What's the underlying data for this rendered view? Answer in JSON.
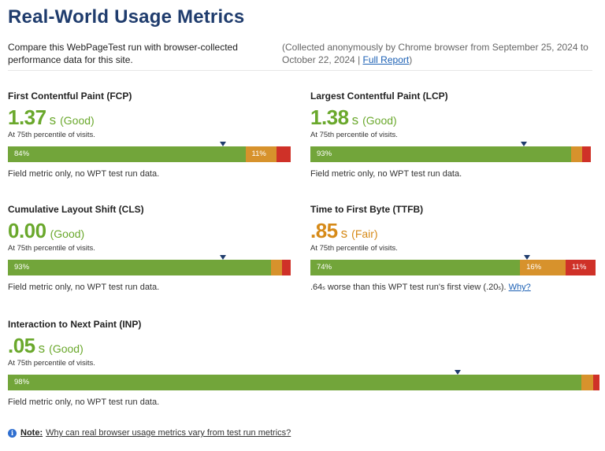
{
  "page": {
    "title": "Real-World Usage Metrics",
    "intro_left": "Compare this WebPageTest run with browser-collected performance data for this site.",
    "intro_right_text": "(Collected anonymously by Chrome browser from September 25, 2024 to October 22, 2024 | ",
    "intro_right_link": "Full Report",
    "intro_right_close": ")"
  },
  "colors": {
    "good": "#72a53a",
    "needs_improvement": "#d7922c",
    "poor": "#cf3128",
    "title": "#1f3c6d"
  },
  "metrics": {
    "fcp": {
      "title": "First Contentful Paint (FCP)",
      "value": "1.37",
      "unit": "s",
      "rating": "(Good)",
      "percentile": "At 75th percentile of visits.",
      "bar_labels": [
        "84%",
        "11%",
        ""
      ],
      "bar_fractions": [
        0.84,
        0.11,
        0.05
      ],
      "marker_fraction": 0.76,
      "note": "Field metric only, no WPT test run data."
    },
    "lcp": {
      "title": "Largest Contentful Paint (LCP)",
      "value": "1.38",
      "unit": "s",
      "rating": "(Good)",
      "percentile": "At 75th percentile of visits.",
      "bar_labels": [
        "93%",
        "",
        ""
      ],
      "bar_fractions": [
        0.93,
        0.04,
        0.03
      ],
      "marker_fraction": 0.76,
      "note": "Field metric only, no WPT test run data."
    },
    "cls": {
      "title": "Cumulative Layout Shift (CLS)",
      "value": "0.00",
      "unit": "",
      "rating": "(Good)",
      "percentile": "At 75th percentile of visits.",
      "bar_labels": [
        "93%",
        "",
        ""
      ],
      "bar_fractions": [
        0.93,
        0.04,
        0.03
      ],
      "marker_fraction": 0.76,
      "note": "Field metric only, no WPT test run data."
    },
    "ttfb": {
      "title": "Time to First Byte (TTFB)",
      "value": ".85",
      "unit": "s",
      "rating": "(Fair)",
      "percentile": "At 75th percentile of visits.",
      "bar_labels": [
        "74%",
        "16%",
        "11%"
      ],
      "bar_fractions": [
        0.735,
        0.16,
        0.105
      ],
      "marker_fraction": 0.76,
      "note_start": ".64",
      "note_unit": "s",
      "note_middle": " worse than this WPT test run's first view (.20",
      "note_unit2": "s",
      "note_end": ").",
      "note_link": "Why?"
    },
    "inp": {
      "title": "Interaction to Next Paint (INP)",
      "value": ".05",
      "unit": "s",
      "rating": "(Good)",
      "percentile": "At 75th percentile of visits.",
      "bar_labels": [
        "98%",
        "",
        ""
      ],
      "bar_fractions": [
        0.977,
        0.02,
        0.01
      ],
      "marker_fraction": 0.76,
      "note": "Field metric only, no WPT test run data."
    }
  },
  "footnote": {
    "icon": "info-icon",
    "label": "Note:",
    "link": "Why can real browser usage metrics vary from test run metrics?"
  }
}
